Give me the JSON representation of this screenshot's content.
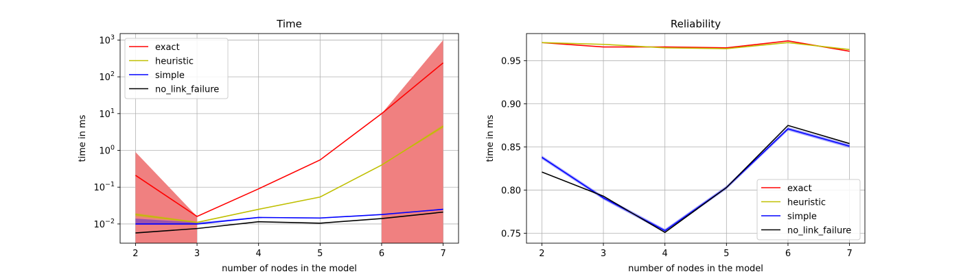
{
  "colors": {
    "exact": "#ff0000",
    "heuristic": "#bfbf00",
    "simple": "#0000ff",
    "no_link_failure": "#000000",
    "band": "#f08080",
    "grid": "#b0b0b0"
  },
  "chart_data": [
    {
      "type": "line",
      "title": "Time",
      "xlabel": "number of nodes in the model",
      "ylabel": "time in ms",
      "yscale": "log",
      "xlim": [
        1.75,
        7.25
      ],
      "ylim": [
        0.003,
        1500
      ],
      "x": [
        2,
        3,
        4,
        5,
        6,
        7
      ],
      "xticks": [
        2,
        3,
        4,
        5,
        6,
        7
      ],
      "yticks": [
        0.01,
        0.1,
        1,
        10,
        100,
        1000
      ],
      "yticklabels": [
        {
          "base": "10",
          "exp": "−2"
        },
        {
          "base": "10",
          "exp": "−1"
        },
        {
          "base": "10",
          "exp": "0"
        },
        {
          "base": "10",
          "exp": "1"
        },
        {
          "base": "10",
          "exp": "2"
        },
        {
          "base": "10",
          "exp": "3"
        }
      ],
      "grid": true,
      "legend": "upper-left",
      "series": [
        {
          "name": "exact",
          "values": [
            0.21,
            0.016,
            0.09,
            0.55,
            10,
            240
          ]
        },
        {
          "name": "heuristic",
          "values": [
            0.018,
            0.011,
            0.025,
            0.054,
            0.4,
            4.5
          ]
        },
        {
          "name": "simple",
          "values": [
            0.01,
            0.01,
            0.015,
            0.0145,
            0.018,
            0.025
          ]
        },
        {
          "name": "no_link_failure",
          "values": [
            0.0057,
            0.0075,
            0.0115,
            0.0105,
            0.014,
            0.021
          ]
        }
      ],
      "bands": [
        {
          "series": "exact",
          "x": [
            2,
            3
          ],
          "lower": [
            0.003,
            0.003
          ],
          "upper": [
            0.9,
            0.016
          ]
        },
        {
          "series": "exact",
          "x": [
            6,
            7
          ],
          "lower": [
            0.003,
            0.003
          ],
          "upper": [
            10,
            1000
          ]
        },
        {
          "series": "heuristic",
          "x": [
            2,
            3,
            4,
            5,
            6,
            7
          ],
          "lower": [
            0.016,
            0.0105,
            0.025,
            0.054,
            0.4,
            4.0
          ],
          "upper": [
            0.02,
            0.0115,
            0.025,
            0.054,
            0.4,
            5.0
          ]
        },
        {
          "series": "simple",
          "x": [
            2,
            3,
            4,
            5,
            6,
            7
          ],
          "lower": [
            0.0095,
            0.0095,
            0.0145,
            0.014,
            0.0175,
            0.024
          ],
          "upper": [
            0.014,
            0.011,
            0.0155,
            0.015,
            0.0185,
            0.026
          ]
        }
      ]
    },
    {
      "type": "line",
      "title": "Reliability",
      "xlabel": "number of nodes in the model",
      "ylabel": "time in ms",
      "yscale": "linear",
      "xlim": [
        1.75,
        7.25
      ],
      "ylim": [
        0.7385,
        0.9815
      ],
      "x": [
        2,
        3,
        4,
        5,
        6,
        7
      ],
      "xticks": [
        2,
        3,
        4,
        5,
        6,
        7
      ],
      "yticks": [
        0.75,
        0.8,
        0.85,
        0.9,
        0.95
      ],
      "yticklabels": [
        "0.75",
        "0.80",
        "0.85",
        "0.90",
        "0.95"
      ],
      "grid": true,
      "legend": "lower-right",
      "series": [
        {
          "name": "exact",
          "values": [
            0.971,
            0.966,
            0.966,
            0.965,
            0.973,
            0.961
          ]
        },
        {
          "name": "heuristic",
          "values": [
            0.971,
            0.969,
            0.965,
            0.964,
            0.971,
            0.963
          ]
        },
        {
          "name": "simple",
          "values": [
            0.838,
            0.791,
            0.753,
            0.803,
            0.871,
            0.851
          ]
        },
        {
          "name": "no_link_failure",
          "values": [
            0.821,
            0.793,
            0.751,
            0.803,
            0.875,
            0.854
          ]
        }
      ],
      "bands": [
        {
          "series": "simple",
          "x": [
            2,
            3,
            4,
            5,
            6,
            7
          ],
          "lower": [
            0.836,
            0.789,
            0.751,
            0.801,
            0.869,
            0.849
          ],
          "upper": [
            0.84,
            0.793,
            0.755,
            0.805,
            0.873,
            0.853
          ]
        }
      ]
    }
  ]
}
